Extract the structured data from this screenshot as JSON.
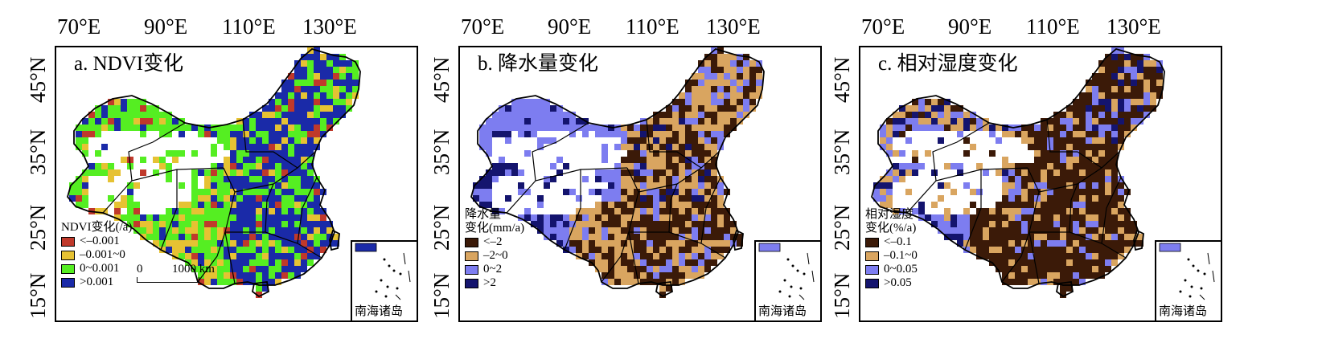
{
  "longitude_labels": [
    "70°E",
    "90°E",
    "110°E",
    "130°E"
  ],
  "latitude_labels": [
    "15°N",
    "25°N",
    "35°N",
    "45°N"
  ],
  "inset_label": "南海诸岛",
  "panels": [
    {
      "title": "a. NDVI变化",
      "legend_title_lines": [
        "NDVI变化(/a)"
      ],
      "legend": [
        {
          "label": "<–0.001",
          "color": "#c0392b"
        },
        {
          "label": "–0.001~0",
          "color": "#e6c233"
        },
        {
          "label": "0~0.001",
          "color": "#55ee22"
        },
        {
          "label": ">0.001",
          "color": "#1a2aa8"
        }
      ],
      "scalebar": {
        "zero": "0",
        "length_label": "1000 km"
      }
    },
    {
      "title": "b. 降水量变化",
      "legend_title_lines": [
        "降水量",
        "变化(mm/a)"
      ],
      "legend": [
        {
          "label": "<–2",
          "color": "#3b1a08"
        },
        {
          "label": "–2~0",
          "color": "#d9a560"
        },
        {
          "label": "0~2",
          "color": "#7d7df0"
        },
        {
          "label": ">2",
          "color": "#14146e"
        }
      ]
    },
    {
      "title": "c. 相对湿度变化",
      "legend_title_lines": [
        "相对湿度",
        "变化(%/a)"
      ],
      "legend": [
        {
          "label": "<–0.1",
          "color": "#3b1a08"
        },
        {
          "label": "–0.1~0",
          "color": "#d9a560"
        },
        {
          "label": "0~0.05",
          "color": "#7d7df0"
        },
        {
          "label": ">0.05",
          "color": "#14146e"
        }
      ]
    }
  ]
}
